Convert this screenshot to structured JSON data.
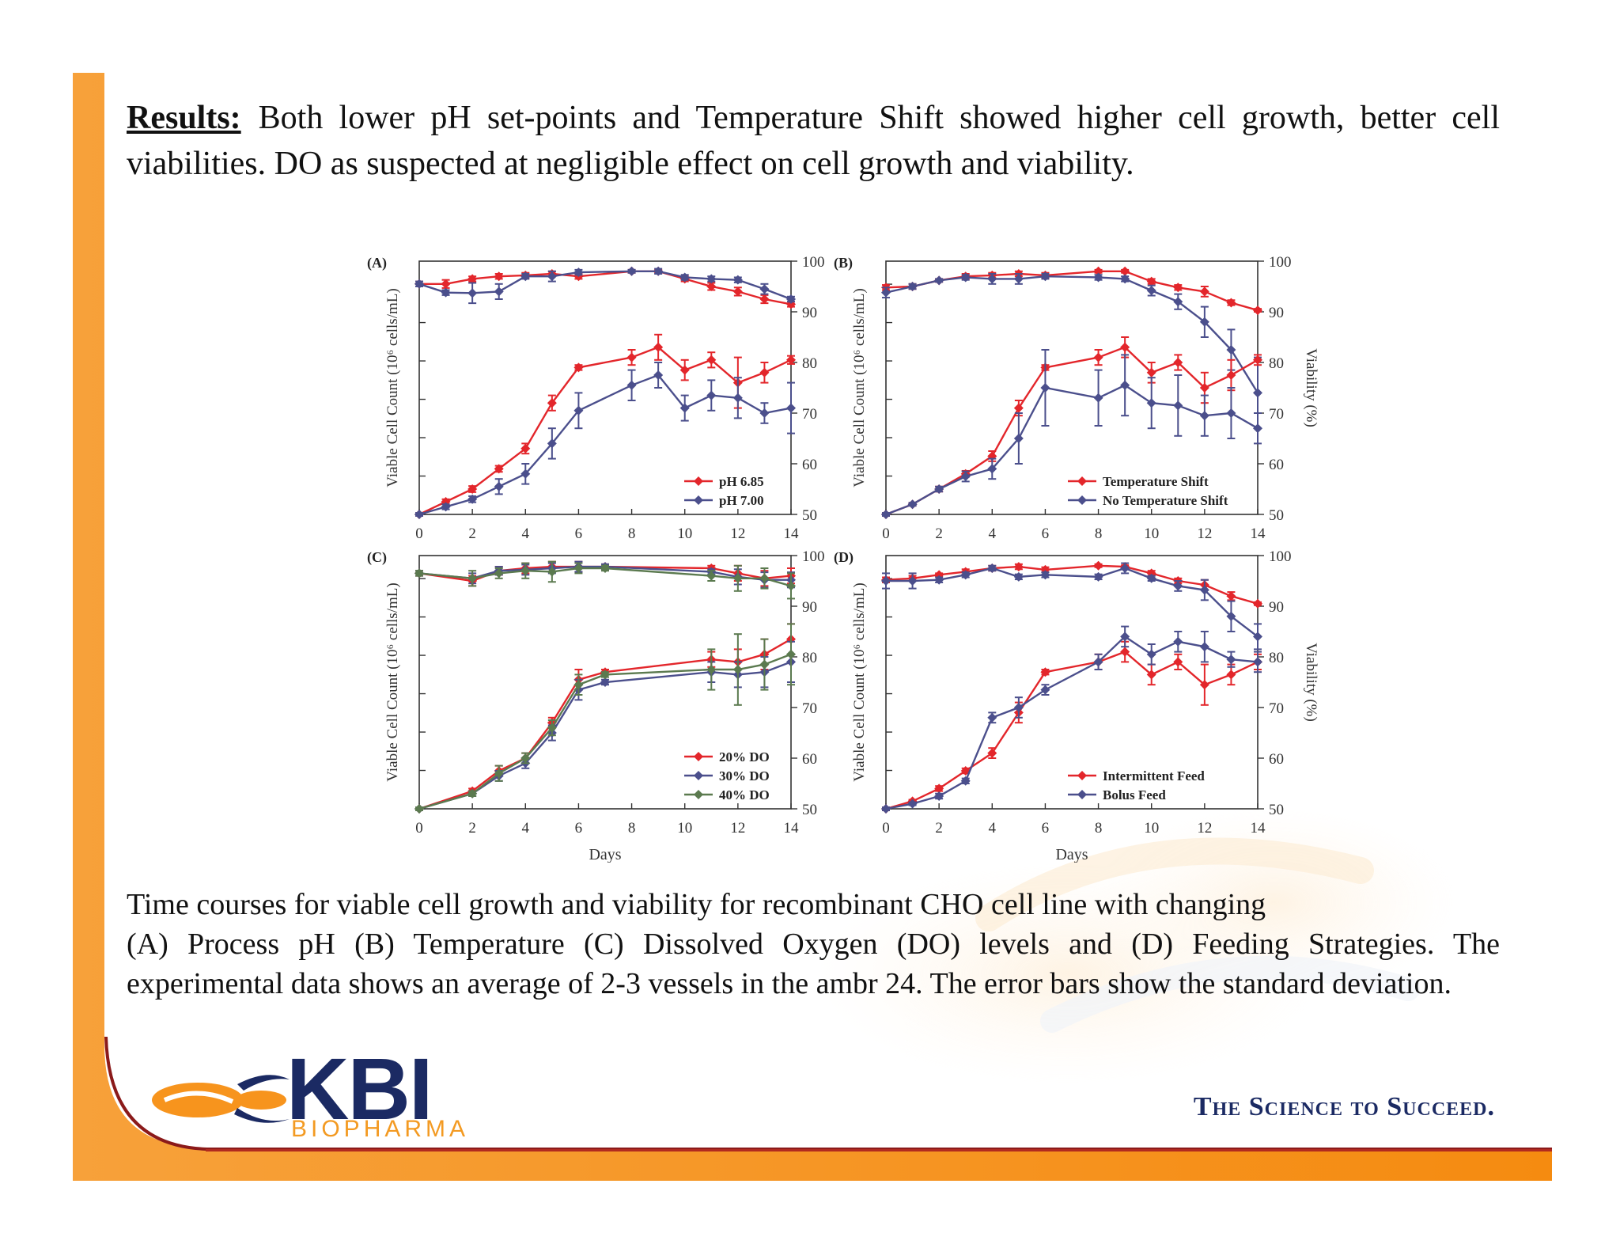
{
  "results": {
    "label": "Results:",
    "text": "Both lower pH set-points and Temperature Shift showed higher cell growth, better cell viabilities. DO as suspected at negligible effect on cell growth and viability."
  },
  "caption": {
    "line1": "Time courses for viable cell growth and viability for recombinant CHO cell line with changing",
    "rest": "(A) Process pH (B) Temperature (C) Dissolved Oxygen (DO) levels and (D) Feeding Strategies. The experimental data shows an average of 2-3 vessels in the ambr 24. The error bars show the standard deviation."
  },
  "logo": {
    "main": "KBI",
    "sub": "BIOPHARMA"
  },
  "tagline": "The Science to Succeed.",
  "colors": {
    "orange": "#f7941d",
    "navy": "#1b2a63",
    "red": "#e3262b",
    "blue": "#4b4f8c",
    "green": "#5b7a4f"
  },
  "chart_data": [
    {
      "type": "line",
      "panel": "(A)",
      "ylabel": "Viable Cell Count (10⁶ cells/mL)",
      "y2label": "",
      "xlabel": "",
      "x_ticks": [
        "0",
        "2",
        "4",
        "6",
        "8",
        "10",
        "12",
        "14"
      ],
      "y2_ticks": [
        "50",
        "60",
        "70",
        "80",
        "90",
        "100"
      ],
      "xlim": [
        0,
        14
      ],
      "y2lim": [
        50,
        100
      ],
      "legend": "bottom-right",
      "series": [
        {
          "name": "pH 6.85",
          "color": "#e3262b",
          "axis": "viability",
          "x": [
            0,
            1,
            2,
            3,
            4,
            5,
            6,
            8,
            9,
            10,
            11,
            12,
            13,
            14
          ],
          "y": [
            95.5,
            95.5,
            96.5,
            97,
            97.2,
            97.5,
            97,
            98,
            98,
            96.5,
            95,
            94,
            92.5,
            91.5
          ],
          "err": [
            0.5,
            0.8,
            0.5,
            0.5,
            0.5,
            0.5,
            0.5,
            0.3,
            0.3,
            0.5,
            0.7,
            0.8,
            0.8,
            0.5
          ]
        },
        {
          "name": "pH 7.00",
          "color": "#4b4f8c",
          "axis": "viability",
          "x": [
            0,
            1,
            2,
            3,
            4,
            5,
            6,
            8,
            9,
            10,
            11,
            12,
            13,
            14
          ],
          "y": [
            95.5,
            93.8,
            93.7,
            94,
            97,
            97,
            97.8,
            98,
            98,
            96.8,
            96.5,
            96.3,
            94.5,
            92.5
          ],
          "err": [
            0.5,
            0.5,
            2,
            1.5,
            0.5,
            1,
            0.5,
            0.3,
            0.5,
            0.5,
            0.5,
            0.5,
            1,
            0.5
          ]
        },
        {
          "name": "pH 6.85",
          "color": "#e3262b",
          "axis": "vcc",
          "x": [
            0,
            1,
            2,
            3,
            4,
            5,
            6,
            8,
            9,
            10,
            11,
            12,
            13,
            14
          ],
          "y": [
            50,
            52.5,
            55,
            59,
            63,
            72,
            79,
            81,
            83,
            78.5,
            80.5,
            76,
            78,
            80.5
          ],
          "err": [
            0.3,
            0.5,
            0.6,
            0.6,
            1,
            1.5,
            0.5,
            1.5,
            2.5,
            2,
            1.5,
            5,
            2,
            0.8
          ]
        },
        {
          "name": "pH 7.00",
          "color": "#4b4f8c",
          "axis": "vcc",
          "x": [
            0,
            1,
            2,
            3,
            4,
            5,
            6,
            8,
            9,
            10,
            11,
            12,
            13,
            14
          ],
          "y": [
            50,
            51.5,
            53,
            55.5,
            58,
            64,
            70.5,
            75.5,
            77.5,
            71,
            73.5,
            73,
            70,
            71
          ],
          "err": [
            0.3,
            0.5,
            0.6,
            1.5,
            2,
            3,
            3.5,
            3,
            2.5,
            2.5,
            3,
            4,
            2,
            5
          ]
        }
      ]
    },
    {
      "type": "line",
      "panel": "(B)",
      "ylabel": "Viable Cell Count (10⁶ cells/mL)",
      "y2label": "Viability (%)",
      "xlabel": "",
      "x_ticks": [
        "0",
        "2",
        "4",
        "6",
        "8",
        "10",
        "12",
        "14"
      ],
      "y2_ticks": [
        "50",
        "60",
        "70",
        "80",
        "90",
        "100"
      ],
      "xlim": [
        0,
        14
      ],
      "y2lim": [
        50,
        100
      ],
      "legend": "bottom-right",
      "series": [
        {
          "name": "Temperature Shift",
          "color": "#e3262b",
          "axis": "viability",
          "x": [
            0,
            1,
            2,
            3,
            4,
            5,
            6,
            8,
            9,
            10,
            11,
            12,
            13,
            14
          ],
          "y": [
            94.8,
            95,
            96.2,
            97,
            97.2,
            97.5,
            97.2,
            98,
            98,
            96,
            94.8,
            94,
            91.8,
            90.3
          ],
          "err": [
            0.5,
            0.5,
            0.3,
            0.5,
            0.5,
            0.5,
            0.5,
            0.3,
            0.3,
            0.5,
            0.5,
            1,
            0.5,
            0.3
          ]
        },
        {
          "name": "No Temperature Shift",
          "color": "#4b4f8c",
          "axis": "viability",
          "x": [
            0,
            1,
            2,
            3,
            4,
            5,
            6,
            8,
            9,
            10,
            11,
            12,
            13,
            14
          ],
          "y": [
            93.8,
            95,
            96.2,
            96.8,
            96.5,
            96.5,
            97,
            96.8,
            96.5,
            94.2,
            92,
            88,
            82.5,
            74
          ],
          "err": [
            1,
            0.5,
            0.3,
            0.5,
            1,
            1,
            0.5,
            0.5,
            0.5,
            1,
            1.5,
            3,
            4,
            7
          ]
        },
        {
          "name": "Temperature Shift",
          "color": "#e3262b",
          "axis": "vcc",
          "x": [
            0,
            1,
            2,
            3,
            4,
            5,
            6,
            8,
            9,
            10,
            11,
            12,
            13,
            14
          ],
          "y": [
            50,
            52,
            55,
            58,
            61.5,
            71,
            79,
            81,
            83,
            78,
            80,
            75,
            77.5,
            80.5
          ],
          "err": [
            0.3,
            0.3,
            0.5,
            0.6,
            1,
            1.5,
            0.5,
            1.5,
            2,
            2,
            1.5,
            3,
            3,
            1
          ]
        },
        {
          "name": "No Temperature Shift",
          "color": "#4b4f8c",
          "axis": "vcc",
          "x": [
            0,
            1,
            2,
            3,
            4,
            5,
            6,
            8,
            9,
            10,
            11,
            12,
            13,
            14
          ],
          "y": [
            50,
            52,
            55,
            57.5,
            59,
            65,
            75,
            73,
            75.5,
            72,
            71.5,
            69.5,
            70,
            67
          ],
          "err": [
            0.3,
            0.3,
            0.5,
            1,
            2,
            5,
            7.5,
            5.5,
            6,
            5,
            6,
            4,
            5,
            3
          ]
        }
      ]
    },
    {
      "type": "line",
      "panel": "(C)",
      "ylabel": "Viable Cell Count (10⁶ cells/mL)",
      "y2label": "",
      "xlabel": "Days",
      "x_ticks": [
        "0",
        "2",
        "4",
        "6",
        "8",
        "10",
        "12",
        "14"
      ],
      "y2_ticks": [
        "50",
        "60",
        "70",
        "80",
        "90",
        "100"
      ],
      "xlim": [
        0,
        14
      ],
      "y2lim": [
        50,
        100
      ],
      "legend": "bottom-right",
      "series": [
        {
          "name": "20% DO",
          "color": "#e3262b",
          "axis": "viability",
          "x": [
            0,
            2,
            3,
            4,
            5,
            6,
            7,
            11,
            12,
            13,
            14
          ],
          "y": [
            96.5,
            95,
            97,
            97.5,
            97.8,
            97.8,
            97.8,
            97.5,
            96.5,
            95.5,
            96
          ],
          "err": [
            0.5,
            1,
            0.8,
            1,
            1,
            1,
            0.5,
            0.5,
            1.5,
            1.5,
            1.5
          ]
        },
        {
          "name": "30% DO",
          "color": "#4b4f8c",
          "axis": "viability",
          "x": [
            0,
            2,
            3,
            4,
            5,
            6,
            7,
            11,
            12,
            13,
            14
          ],
          "y": [
            96.5,
            95.5,
            97,
            97.2,
            97.5,
            97.8,
            97.8,
            96.8,
            95.8,
            95.2,
            95.2
          ],
          "err": [
            0.5,
            1,
            0.8,
            1,
            1,
            1,
            0.5,
            0.5,
            1.5,
            1.5,
            1.5
          ]
        },
        {
          "name": "40% DO",
          "color": "#5b7a4f",
          "axis": "viability",
          "x": [
            0,
            2,
            3,
            4,
            5,
            6,
            7,
            11,
            12,
            13,
            14
          ],
          "y": [
            96.5,
            95.5,
            96.5,
            97,
            96.8,
            97.5,
            97.5,
            96,
            95.5,
            95.5,
            94
          ],
          "err": [
            0.5,
            1.5,
            1,
            1.5,
            2,
            1,
            0.5,
            1,
            2.5,
            2,
            2.5
          ]
        },
        {
          "name": "20% DO",
          "color": "#e3262b",
          "axis": "vcc",
          "x": [
            0,
            2,
            3,
            4,
            5,
            6,
            7,
            11,
            12,
            13,
            14
          ],
          "y": [
            50,
            53.5,
            57.5,
            60,
            67,
            75.5,
            77,
            79.5,
            79,
            80.5,
            83.5
          ],
          "err": [
            0.3,
            0.5,
            1,
            1,
            1,
            2,
            0.5,
            1.5,
            2.5,
            3,
            3
          ]
        },
        {
          "name": "30% DO",
          "color": "#4b4f8c",
          "axis": "vcc",
          "x": [
            0,
            2,
            3,
            4,
            5,
            6,
            7,
            11,
            12,
            13,
            14
          ],
          "y": [
            50,
            53,
            56.5,
            59,
            65,
            73.5,
            75,
            77,
            76.5,
            77,
            79
          ],
          "err": [
            0.3,
            0.5,
            1,
            1,
            1.5,
            2,
            0.5,
            2,
            2.5,
            3,
            4
          ]
        },
        {
          "name": "40% DO",
          "color": "#5b7a4f",
          "axis": "vcc",
          "x": [
            0,
            2,
            3,
            4,
            5,
            6,
            7,
            11,
            12,
            13,
            14
          ],
          "y": [
            50,
            53,
            57,
            60,
            66,
            74.5,
            76.5,
            77.5,
            77.5,
            78.5,
            80.5
          ],
          "err": [
            0.3,
            0.5,
            1.5,
            1,
            1.5,
            2,
            0.5,
            4,
            7,
            5,
            6
          ]
        }
      ]
    },
    {
      "type": "line",
      "panel": "(D)",
      "ylabel": "Viable Cell Count (10⁶ cells/mL)",
      "y2label": "Viability (%)",
      "xlabel": "Days",
      "x_ticks": [
        "0",
        "2",
        "4",
        "6",
        "8",
        "10",
        "12",
        "14"
      ],
      "y2_ticks": [
        "50",
        "60",
        "70",
        "80",
        "90",
        "100"
      ],
      "xlim": [
        0,
        14
      ],
      "y2lim": [
        50,
        100
      ],
      "legend": "bottom-right",
      "series": [
        {
          "name": "Intermittent Feed",
          "color": "#e3262b",
          "axis": "viability",
          "x": [
            0,
            1,
            2,
            3,
            4,
            5,
            6,
            8,
            9,
            10,
            11,
            12,
            13,
            14
          ],
          "y": [
            95.2,
            95.5,
            96.2,
            96.8,
            97.5,
            97.8,
            97.2,
            98,
            97.8,
            96.5,
            95,
            94.2,
            92,
            90.5
          ],
          "err": [
            0.5,
            0.5,
            0.3,
            0.5,
            0.5,
            0.5,
            0.5,
            0.3,
            0.3,
            0.5,
            0.5,
            1,
            0.8,
            0.3
          ]
        },
        {
          "name": "Bolus Feed",
          "color": "#4b4f8c",
          "axis": "viability",
          "x": [
            0,
            1,
            2,
            3,
            4,
            5,
            6,
            8,
            9,
            10,
            11,
            12,
            13,
            14
          ],
          "y": [
            95,
            95,
            95.2,
            96.2,
            97.5,
            95.8,
            96.2,
            95.8,
            97.5,
            95.5,
            94,
            93.2,
            88,
            84
          ],
          "err": [
            1.5,
            1.5,
            0.5,
            0.5,
            0.5,
            0.5,
            0.5,
            0.5,
            1,
            0.5,
            1,
            2,
            3,
            2.5
          ]
        },
        {
          "name": "Intermittent Feed",
          "color": "#e3262b",
          "axis": "vcc",
          "x": [
            0,
            1,
            2,
            3,
            4,
            5,
            6,
            8,
            9,
            10,
            11,
            12,
            13,
            14
          ],
          "y": [
            50,
            51.5,
            54,
            57.5,
            61,
            69,
            77,
            79,
            81,
            76.5,
            79,
            74.5,
            76.5,
            79
          ],
          "err": [
            0.3,
            0.3,
            0.5,
            0.5,
            1,
            2,
            0.5,
            1.5,
            2,
            2,
            1.5,
            4,
            2,
            1.5
          ]
        },
        {
          "name": "Bolus Feed",
          "color": "#4b4f8c",
          "axis": "vcc",
          "x": [
            0,
            1,
            2,
            3,
            4,
            5,
            6,
            8,
            9,
            10,
            11,
            12,
            13,
            14
          ],
          "y": [
            50,
            51,
            52.5,
            55.5,
            68,
            70,
            73.5,
            79,
            84,
            80.5,
            83,
            82,
            79.5,
            79
          ],
          "err": [
            0.3,
            0.3,
            0.5,
            0.5,
            1,
            2,
            1,
            1.5,
            2,
            2,
            2,
            3,
            1.5,
            2
          ]
        }
      ]
    }
  ]
}
